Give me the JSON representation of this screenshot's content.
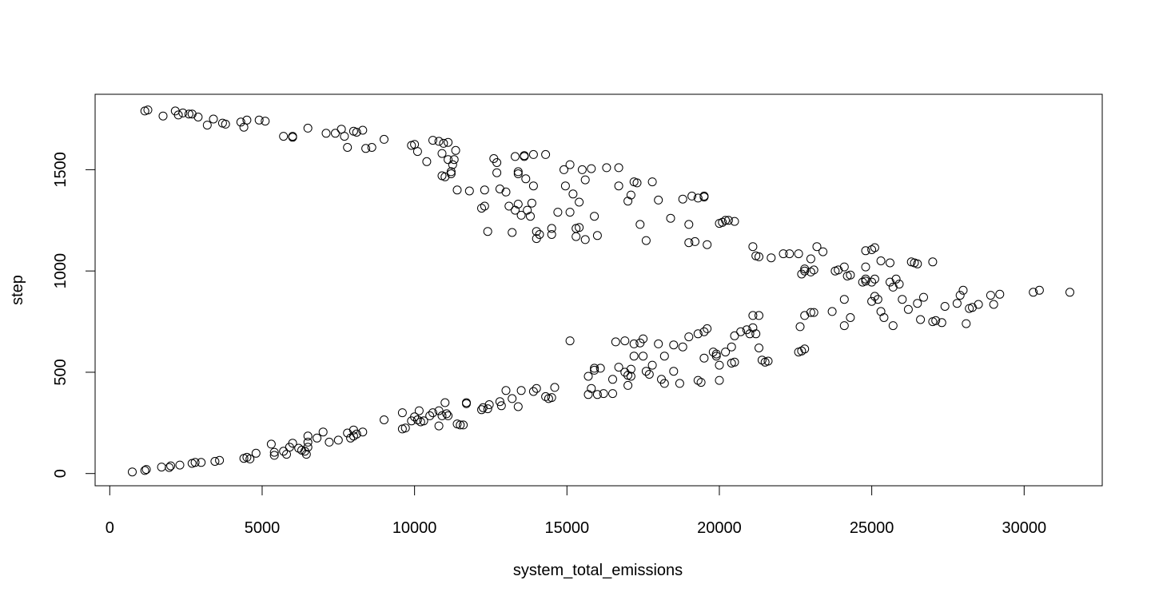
{
  "chart_data": {
    "type": "scatter",
    "title": "",
    "xlabel": "system_total_emissions",
    "ylabel": "step",
    "xlim": [
      0,
      32000
    ],
    "ylim": [
      0,
      1800
    ],
    "x_ticks": [
      0,
      5000,
      10000,
      15000,
      20000,
      25000,
      30000
    ],
    "x_tick_labels": [
      "0",
      "5000",
      "10000",
      "15000",
      "20000",
      "25000",
      "30000"
    ],
    "y_ticks": [
      0,
      500,
      1000,
      1500
    ],
    "y_tick_labels": [
      "0",
      "500",
      "1000",
      "1500"
    ],
    "grid": false,
    "legend": "none",
    "marker": "open-circle",
    "points": [
      [
        740,
        8
      ],
      [
        1150,
        15
      ],
      [
        1200,
        20
      ],
      [
        1700,
        32
      ],
      [
        1950,
        30
      ],
      [
        2000,
        38
      ],
      [
        2300,
        42
      ],
      [
        2700,
        50
      ],
      [
        2800,
        55
      ],
      [
        3000,
        55
      ],
      [
        3450,
        60
      ],
      [
        3600,
        65
      ],
      [
        4400,
        75
      ],
      [
        4500,
        80
      ],
      [
        4600,
        72
      ],
      [
        4800,
        100
      ],
      [
        5300,
        145
      ],
      [
        5400,
        90
      ],
      [
        5400,
        105
      ],
      [
        5700,
        110
      ],
      [
        5800,
        95
      ],
      [
        5900,
        130
      ],
      [
        6000,
        150
      ],
      [
        6200,
        125
      ],
      [
        6300,
        115
      ],
      [
        6400,
        110
      ],
      [
        6450,
        95
      ],
      [
        6500,
        130
      ],
      [
        6500,
        155
      ],
      [
        6500,
        185
      ],
      [
        6800,
        175
      ],
      [
        7000,
        205
      ],
      [
        7200,
        155
      ],
      [
        7500,
        165
      ],
      [
        7800,
        200
      ],
      [
        7900,
        175
      ],
      [
        8000,
        185
      ],
      [
        8000,
        215
      ],
      [
        8100,
        195
      ],
      [
        8300,
        205
      ],
      [
        9000,
        265
      ],
      [
        9600,
        300
      ],
      [
        9600,
        220
      ],
      [
        9700,
        225
      ],
      [
        9900,
        260
      ],
      [
        10000,
        280
      ],
      [
        10100,
        265
      ],
      [
        10150,
        310
      ],
      [
        10200,
        255
      ],
      [
        10300,
        260
      ],
      [
        10500,
        285
      ],
      [
        10600,
        300
      ],
      [
        10800,
        310
      ],
      [
        10800,
        235
      ],
      [
        10900,
        285
      ],
      [
        11000,
        350
      ],
      [
        11050,
        295
      ],
      [
        11100,
        285
      ],
      [
        11400,
        245
      ],
      [
        11500,
        240
      ],
      [
        11600,
        240
      ],
      [
        11700,
        345
      ],
      [
        11700,
        350
      ],
      [
        12200,
        315
      ],
      [
        12250,
        325
      ],
      [
        12400,
        320
      ],
      [
        12450,
        340
      ],
      [
        12800,
        355
      ],
      [
        12850,
        335
      ],
      [
        13000,
        410
      ],
      [
        13200,
        370
      ],
      [
        13400,
        330
      ],
      [
        13500,
        410
      ],
      [
        13900,
        405
      ],
      [
        14000,
        420
      ],
      [
        14300,
        380
      ],
      [
        14400,
        370
      ],
      [
        14500,
        375
      ],
      [
        14600,
        425
      ],
      [
        15100,
        655
      ],
      [
        15700,
        390
      ],
      [
        15700,
        480
      ],
      [
        15800,
        420
      ],
      [
        15900,
        510
      ],
      [
        15900,
        520
      ],
      [
        16000,
        390
      ],
      [
        16100,
        520
      ],
      [
        16200,
        395
      ],
      [
        16500,
        465
      ],
      [
        16500,
        395
      ],
      [
        16600,
        650
      ],
      [
        16700,
        525
      ],
      [
        16900,
        655
      ],
      [
        16900,
        500
      ],
      [
        17000,
        485
      ],
      [
        17000,
        435
      ],
      [
        17100,
        515
      ],
      [
        17100,
        480
      ],
      [
        17200,
        640
      ],
      [
        17200,
        580
      ],
      [
        17400,
        645
      ],
      [
        17500,
        665
      ],
      [
        17500,
        580
      ],
      [
        17600,
        505
      ],
      [
        17700,
        490
      ],
      [
        17800,
        535
      ],
      [
        18000,
        640
      ],
      [
        18100,
        465
      ],
      [
        18200,
        580
      ],
      [
        18200,
        445
      ],
      [
        18500,
        635
      ],
      [
        18500,
        505
      ],
      [
        18700,
        445
      ],
      [
        18800,
        625
      ],
      [
        19000,
        675
      ],
      [
        19300,
        690
      ],
      [
        19300,
        460
      ],
      [
        19400,
        450
      ],
      [
        19500,
        570
      ],
      [
        19500,
        700
      ],
      [
        19600,
        715
      ],
      [
        19800,
        600
      ],
      [
        19900,
        580
      ],
      [
        19900,
        590
      ],
      [
        20000,
        460
      ],
      [
        20000,
        535
      ],
      [
        20200,
        600
      ],
      [
        20400,
        625
      ],
      [
        20400,
        545
      ],
      [
        20500,
        550
      ],
      [
        20500,
        680
      ],
      [
        20700,
        700
      ],
      [
        20900,
        710
      ],
      [
        21000,
        690
      ],
      [
        21100,
        780
      ],
      [
        21100,
        720
      ],
      [
        21200,
        690
      ],
      [
        21300,
        780
      ],
      [
        21300,
        620
      ],
      [
        21400,
        560
      ],
      [
        21500,
        550
      ],
      [
        21600,
        555
      ],
      [
        22600,
        600
      ],
      [
        22650,
        725
      ],
      [
        22700,
        605
      ],
      [
        22800,
        615
      ],
      [
        22800,
        780
      ],
      [
        23000,
        795
      ],
      [
        23100,
        795
      ],
      [
        23700,
        800
      ],
      [
        24100,
        860
      ],
      [
        24100,
        730
      ],
      [
        24300,
        770
      ],
      [
        24700,
        945
      ],
      [
        24800,
        960
      ],
      [
        24800,
        950
      ],
      [
        25000,
        850
      ],
      [
        25000,
        945
      ],
      [
        25100,
        960
      ],
      [
        25100,
        875
      ],
      [
        25200,
        860
      ],
      [
        25300,
        800
      ],
      [
        25400,
        770
      ],
      [
        25600,
        945
      ],
      [
        25700,
        920
      ],
      [
        25700,
        730
      ],
      [
        25800,
        960
      ],
      [
        25900,
        935
      ],
      [
        26000,
        860
      ],
      [
        26200,
        810
      ],
      [
        26500,
        840
      ],
      [
        26600,
        760
      ],
      [
        26700,
        870
      ],
      [
        27000,
        750
      ],
      [
        27100,
        755
      ],
      [
        27300,
        745
      ],
      [
        27400,
        825
      ],
      [
        27800,
        840
      ],
      [
        27900,
        880
      ],
      [
        28000,
        905
      ],
      [
        28100,
        740
      ],
      [
        28200,
        815
      ],
      [
        28300,
        820
      ],
      [
        28500,
        835
      ],
      [
        28900,
        880
      ],
      [
        29000,
        835
      ],
      [
        29200,
        885
      ],
      [
        30300,
        895
      ],
      [
        30500,
        905
      ],
      [
        31500,
        895
      ],
      [
        1150,
        1790
      ],
      [
        1250,
        1795
      ],
      [
        1750,
        1765
      ],
      [
        2150,
        1790
      ],
      [
        2250,
        1770
      ],
      [
        2400,
        1780
      ],
      [
        2600,
        1775
      ],
      [
        2700,
        1775
      ],
      [
        2900,
        1760
      ],
      [
        3200,
        1720
      ],
      [
        3400,
        1750
      ],
      [
        3700,
        1730
      ],
      [
        3800,
        1725
      ],
      [
        4300,
        1735
      ],
      [
        4400,
        1710
      ],
      [
        4500,
        1745
      ],
      [
        4900,
        1745
      ],
      [
        5100,
        1740
      ],
      [
        5700,
        1665
      ],
      [
        6000,
        1665
      ],
      [
        6000,
        1660
      ],
      [
        6500,
        1705
      ],
      [
        7100,
        1680
      ],
      [
        7400,
        1680
      ],
      [
        7600,
        1700
      ],
      [
        7700,
        1665
      ],
      [
        7800,
        1610
      ],
      [
        8000,
        1690
      ],
      [
        8100,
        1685
      ],
      [
        8300,
        1695
      ],
      [
        8400,
        1605
      ],
      [
        8600,
        1610
      ],
      [
        9000,
        1650
      ],
      [
        9900,
        1620
      ],
      [
        10000,
        1625
      ],
      [
        10100,
        1590
      ],
      [
        10400,
        1540
      ],
      [
        10600,
        1645
      ],
      [
        10800,
        1640
      ],
      [
        10900,
        1580
      ],
      [
        10900,
        1470
      ],
      [
        10950,
        1630
      ],
      [
        11000,
        1465
      ],
      [
        11100,
        1550
      ],
      [
        11100,
        1635
      ],
      [
        11200,
        1490
      ],
      [
        11200,
        1480
      ],
      [
        11250,
        1525
      ],
      [
        11300,
        1550
      ],
      [
        11350,
        1595
      ],
      [
        11400,
        1400
      ],
      [
        11800,
        1395
      ],
      [
        12200,
        1310
      ],
      [
        12300,
        1320
      ],
      [
        12300,
        1400
      ],
      [
        12400,
        1195
      ],
      [
        12600,
        1555
      ],
      [
        12700,
        1535
      ],
      [
        12700,
        1485
      ],
      [
        12800,
        1405
      ],
      [
        13000,
        1390
      ],
      [
        13100,
        1320
      ],
      [
        13200,
        1190
      ],
      [
        13300,
        1565
      ],
      [
        13300,
        1300
      ],
      [
        13400,
        1490
      ],
      [
        13400,
        1480
      ],
      [
        13400,
        1330
      ],
      [
        13500,
        1275
      ],
      [
        13600,
        1565
      ],
      [
        13600,
        1570
      ],
      [
        13650,
        1455
      ],
      [
        13700,
        1300
      ],
      [
        13800,
        1270
      ],
      [
        13850,
        1335
      ],
      [
        13900,
        1575
      ],
      [
        13900,
        1420
      ],
      [
        14000,
        1195
      ],
      [
        14000,
        1160
      ],
      [
        14100,
        1180
      ],
      [
        14300,
        1575
      ],
      [
        14500,
        1210
      ],
      [
        14500,
        1180
      ],
      [
        14700,
        1290
      ],
      [
        14900,
        1500
      ],
      [
        14950,
        1420
      ],
      [
        15100,
        1525
      ],
      [
        15100,
        1290
      ],
      [
        15200,
        1380
      ],
      [
        15300,
        1210
      ],
      [
        15300,
        1170
      ],
      [
        15400,
        1215
      ],
      [
        15400,
        1340
      ],
      [
        15500,
        1500
      ],
      [
        15600,
        1450
      ],
      [
        15600,
        1155
      ],
      [
        15800,
        1505
      ],
      [
        15900,
        1270
      ],
      [
        16000,
        1175
      ],
      [
        16300,
        1510
      ],
      [
        16700,
        1510
      ],
      [
        16700,
        1420
      ],
      [
        17000,
        1345
      ],
      [
        17100,
        1375
      ],
      [
        17200,
        1440
      ],
      [
        17300,
        1435
      ],
      [
        17400,
        1230
      ],
      [
        17600,
        1150
      ],
      [
        17800,
        1440
      ],
      [
        18000,
        1350
      ],
      [
        18400,
        1260
      ],
      [
        18800,
        1355
      ],
      [
        19000,
        1230
      ],
      [
        19000,
        1140
      ],
      [
        19100,
        1370
      ],
      [
        19200,
        1145
      ],
      [
        19300,
        1360
      ],
      [
        19500,
        1365
      ],
      [
        19500,
        1370
      ],
      [
        19600,
        1130
      ],
      [
        20000,
        1235
      ],
      [
        20100,
        1240
      ],
      [
        20200,
        1250
      ],
      [
        20300,
        1250
      ],
      [
        20500,
        1245
      ],
      [
        21100,
        1120
      ],
      [
        21200,
        1075
      ],
      [
        21300,
        1070
      ],
      [
        21700,
        1065
      ],
      [
        22100,
        1085
      ],
      [
        22300,
        1085
      ],
      [
        22600,
        1085
      ],
      [
        22700,
        985
      ],
      [
        22800,
        1010
      ],
      [
        22800,
        1000
      ],
      [
        23000,
        995
      ],
      [
        23000,
        1060
      ],
      [
        23100,
        1005
      ],
      [
        23200,
        1120
      ],
      [
        23400,
        1095
      ],
      [
        23800,
        1000
      ],
      [
        23900,
        1005
      ],
      [
        24100,
        1020
      ],
      [
        24200,
        975
      ],
      [
        24300,
        980
      ],
      [
        24800,
        1020
      ],
      [
        24800,
        1100
      ],
      [
        25000,
        1105
      ],
      [
        25100,
        1115
      ],
      [
        25300,
        1050
      ],
      [
        25600,
        1040
      ],
      [
        26300,
        1045
      ],
      [
        26400,
        1040
      ],
      [
        26500,
        1035
      ],
      [
        27000,
        1045
      ]
    ]
  }
}
